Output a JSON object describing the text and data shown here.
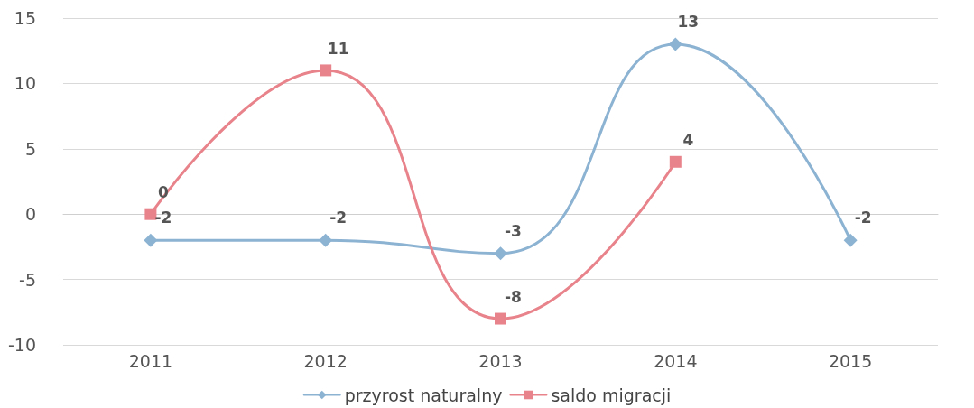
{
  "chart_data": {
    "type": "line",
    "categories": [
      "2011",
      "2012",
      "2013",
      "2014",
      "2015"
    ],
    "series": [
      {
        "name": "przyrost naturalny",
        "color": "#8db3d3",
        "marker": "diamond",
        "values": [
          -2,
          -2,
          -3,
          13,
          -2
        ]
      },
      {
        "name": "saldo migracji",
        "color": "#e9838b",
        "marker": "square",
        "values": [
          0,
          11,
          -8,
          4,
          null
        ]
      }
    ],
    "ylim": [
      -10,
      15
    ],
    "yticks": [
      -10,
      -5,
      0,
      5,
      10,
      15
    ],
    "grid": "y",
    "legend": "bottom",
    "data_labels": true,
    "line_style": "solid"
  }
}
